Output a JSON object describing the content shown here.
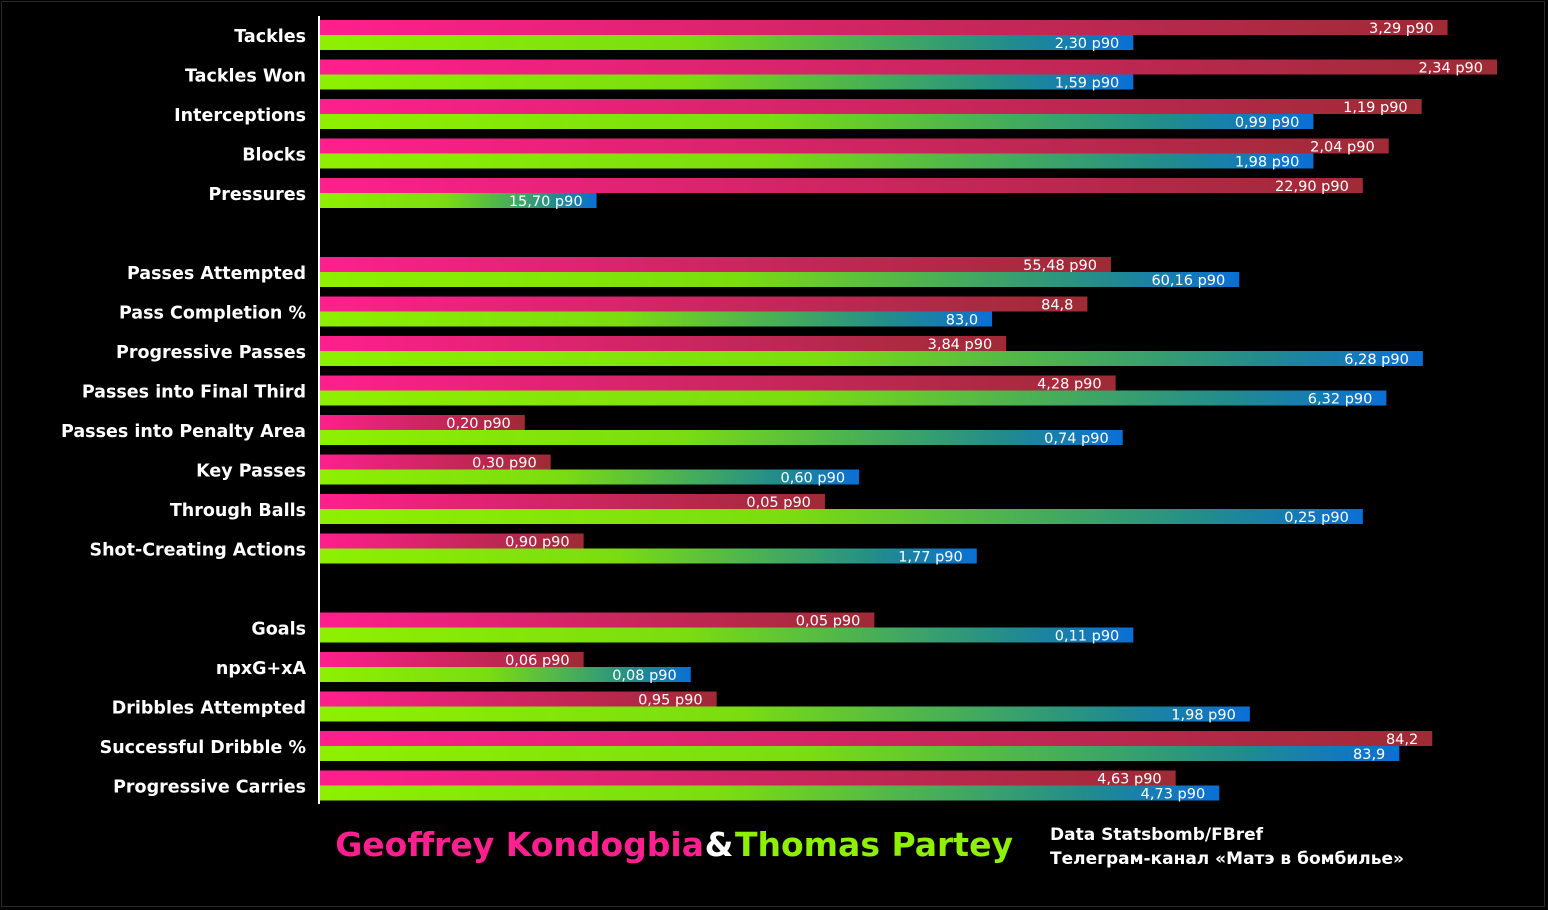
{
  "chart_data": {
    "type": "bar",
    "orientation": "horizontal",
    "categories": [
      "Tackles",
      "Tackles Won",
      "Interceptions",
      "Blocks",
      "Pressures",
      "Passes Attempted",
      "Pass Completion %",
      "Progressive Passes",
      "Passes into Final Third",
      "Passes into Penalty Area",
      "Key Passes",
      "Through Balls",
      "Shot-Creating Actions",
      "Goals",
      "npxG+xA",
      "Dribbles Attempted",
      "Successful Dribble %",
      "Progressive Carries"
    ],
    "groups": [
      5,
      8,
      5
    ],
    "series": [
      {
        "name": "Geoffrey Kondogbia",
        "color_start": "#ff1f8e",
        "color_end": "#9e2b35",
        "values": [
          3.29,
          2.34,
          1.19,
          2.04,
          22.9,
          55.48,
          84.8,
          3.84,
          4.28,
          0.2,
          0.3,
          0.05,
          0.9,
          0.05,
          0.06,
          0.95,
          84.2,
          4.63
        ],
        "labels": [
          "3,29 p90",
          "2,34 p90",
          "1,19 p90",
          "2,04 p90",
          "22,90 p90",
          "55,48 p90",
          "84,8",
          "3,84 p90",
          "4,28 p90",
          "0,20 p90",
          "0,30 p90",
          "0,05 p90",
          "0,90 p90",
          "0,05 p90",
          "0,06 p90",
          "0,95 p90",
          "84,2",
          "4,63 p90"
        ],
        "bar_fraction": [
          0.958,
          1.0,
          0.936,
          0.908,
          0.886,
          0.672,
          0.652,
          0.583,
          0.676,
          0.174,
          0.196,
          0.429,
          0.224,
          0.471,
          0.224,
          0.337,
          0.945,
          0.727
        ]
      },
      {
        "name": "Thomas Partey",
        "color_start": "#8ef000",
        "color_end": "#0a6fd6",
        "values": [
          2.3,
          1.59,
          0.99,
          1.98,
          15.7,
          60.16,
          83.0,
          6.28,
          6.32,
          0.74,
          0.6,
          0.25,
          1.77,
          0.11,
          0.08,
          1.98,
          83.9,
          4.73
        ],
        "labels": [
          "2,30 p90",
          "1,59 p90",
          "0,99 p90",
          "1,98 p90",
          "15,70 p90",
          "60,16 p90",
          "83,0",
          "6,28 p90",
          "6,32 p90",
          "0,74 p90",
          "0,60 p90",
          "0,25 p90",
          "1,77 p90",
          "0,11 p90",
          "0,08 p90",
          "1,98 p90",
          "83,9",
          "4,73 p90"
        ],
        "bar_fraction": [
          0.691,
          0.691,
          0.844,
          0.844,
          0.235,
          0.781,
          0.571,
          0.937,
          0.906,
          0.682,
          0.458,
          0.886,
          0.558,
          0.691,
          0.315,
          0.79,
          0.917,
          0.764
        ]
      }
    ],
    "grid": false,
    "legend": "bottom-center"
  },
  "footer": {
    "player1": "Geoffrey Kondogbia",
    "amp": "&",
    "player2": "Thomas Partey",
    "source_line1": "Data Statsbomb/FBref",
    "source_line2": "Телеграм-канал «Матэ в бомбилье»",
    "colors": {
      "player1": "#ff1f8e",
      "amp": "#ffffff",
      "player2": "#8ef000"
    }
  }
}
